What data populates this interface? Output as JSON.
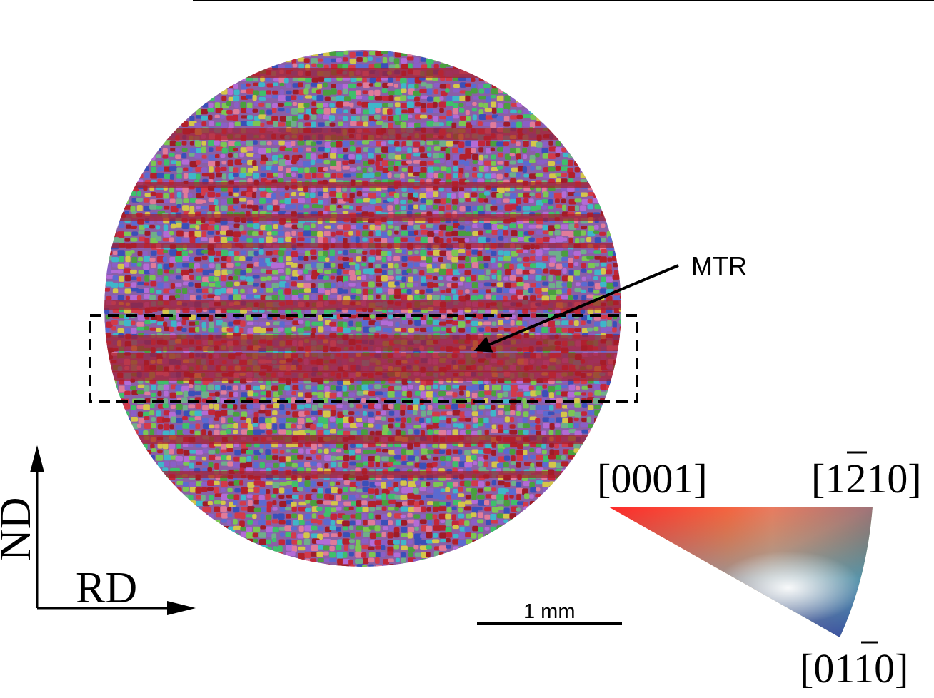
{
  "labels": {
    "region": "MTR",
    "axis_vertical": "ND",
    "axis_horizontal": "RD",
    "scale_bar": "1 mm",
    "ipf_corner_top_left": "[0001]",
    "ipf_corner_top_right": "[1210]",
    "ipf_corner_bottom": "[0110]"
  },
  "colors": {
    "grain_palette": [
      "#b3202a",
      "#c2263a",
      "#9e1b27",
      "#d23a4a",
      "#4a9f3f",
      "#7cc653",
      "#3fbf6b",
      "#5b6ad0",
      "#3a4fb8",
      "#8a5fc6",
      "#b36bd6",
      "#3fb6c9",
      "#d4c64a",
      "#e07b9a",
      "#6fae8a"
    ],
    "band_red": "#a81d29",
    "ipf_red": "#ff0000",
    "ipf_green": "#3fbf3f",
    "ipf_blue": "#2b3fb0"
  }
}
